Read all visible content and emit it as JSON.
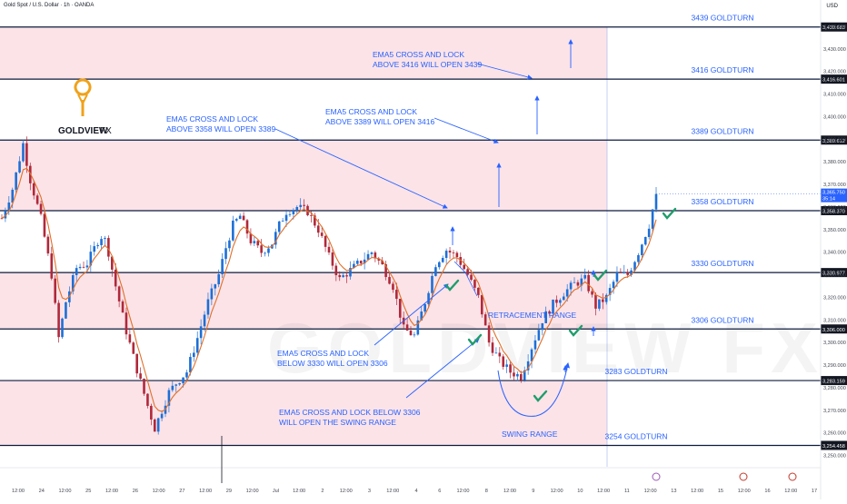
{
  "header": {
    "symbol_title": "Gold Spot / U.S. Dollar · 1h · OANDA",
    "currency": "USD"
  },
  "brand": {
    "name_part1": "GOLDVIEW",
    "name_part2": "FX",
    "watermark": "GOLDVIEW FX"
  },
  "colors": {
    "zone_fill": "#fbe3e8",
    "line": "#0d1b3e",
    "annotation": "#2962ff",
    "candle_up": "#1d6fd6",
    "candle_down": "#b0283a",
    "ema": "#e0702a",
    "check": "#1f9d6b",
    "price_label_bg": "#131722",
    "last_price_bg": "#2962ff"
  },
  "chart_data": {
    "type": "candlestick",
    "instrument": "XAUUSD",
    "timeframe": "1h",
    "ylim": [
      3245,
      3446
    ],
    "y_ticks": [
      3250,
      3260,
      3270,
      3280,
      3290,
      3300,
      3310,
      3320,
      3330,
      3340,
      3350,
      3360,
      3370,
      3380,
      3390,
      3400,
      3410,
      3420,
      3430,
      3440
    ],
    "x_tick_labels": [
      "12:00",
      "24",
      "12:00",
      "25",
      "12:00",
      "26",
      "12:00",
      "27",
      "12:00",
      "29",
      "12:00",
      "Jul",
      "12:00",
      "2",
      "12:00",
      "3",
      "12:00",
      "4",
      "6",
      "12:00",
      "8",
      "12:00",
      "9",
      "12:00",
      "10",
      "12:00",
      "11",
      "12:00",
      "13",
      "12:00",
      "15",
      "12:00",
      "16",
      "12:00",
      "17"
    ],
    "price_path": [
      [
        0,
        3355
      ],
      [
        3,
        3368
      ],
      [
        6,
        3388
      ],
      [
        8,
        3372
      ],
      [
        11,
        3355
      ],
      [
        14,
        3330
      ],
      [
        16,
        3302
      ],
      [
        18,
        3318
      ],
      [
        21,
        3333
      ],
      [
        24,
        3335
      ],
      [
        27,
        3345
      ],
      [
        28.5,
        3348
      ],
      [
        30,
        3340
      ],
      [
        32,
        3325
      ],
      [
        35,
        3305
      ],
      [
        38,
        3288
      ],
      [
        41,
        3272
      ],
      [
        43,
        3262
      ],
      [
        45,
        3270
      ],
      [
        47,
        3278
      ],
      [
        49,
        3282
      ],
      [
        52,
        3287
      ],
      [
        55,
        3302
      ],
      [
        58,
        3318
      ],
      [
        61,
        3330
      ],
      [
        63,
        3342
      ],
      [
        65,
        3352
      ],
      [
        67,
        3356
      ],
      [
        70,
        3345
      ],
      [
        73,
        3340
      ],
      [
        76,
        3344
      ],
      [
        78,
        3352
      ],
      [
        80,
        3358
      ],
      [
        83,
        3360
      ],
      [
        86,
        3358
      ],
      [
        89,
        3350
      ],
      [
        92,
        3338
      ],
      [
        95,
        3328
      ],
      [
        98,
        3332
      ],
      [
        101,
        3336
      ],
      [
        104,
        3340
      ],
      [
        107,
        3334
      ],
      [
        110,
        3325
      ],
      [
        113,
        3306
      ],
      [
        116,
        3303
      ],
      [
        119,
        3318
      ],
      [
        122,
        3335
      ],
      [
        125,
        3341
      ],
      [
        128,
        3338
      ],
      [
        131,
        3330
      ],
      [
        134,
        3320
      ],
      [
        137,
        3300
      ],
      [
        140,
        3292
      ],
      [
        143,
        3287
      ],
      [
        146,
        3285
      ],
      [
        149,
        3298
      ],
      [
        152,
        3310
      ],
      [
        155,
        3317
      ],
      [
        158,
        3322
      ],
      [
        161,
        3326
      ],
      [
        164,
        3328
      ],
      [
        167,
        3316
      ],
      [
        170,
        3320
      ],
      [
        173,
        3330
      ],
      [
        176,
        3330
      ],
      [
        179,
        3340
      ],
      [
        182,
        3352
      ],
      [
        184,
        3365.75
      ]
    ],
    "levels": [
      {
        "price": 3439.683,
        "tag": "3,439.683",
        "label": "3439 GOLDTURN"
      },
      {
        "price": 3416.601,
        "tag": "3,416.601",
        "label": "3416 GOLDTURN"
      },
      {
        "price": 3389.612,
        "tag": "3,389.612",
        "label": "3389 GOLDTURN"
      },
      {
        "price": 3358.37,
        "tag": "3,358.370",
        "label": "3358 GOLDTURN"
      },
      {
        "price": 3330.977,
        "tag": "3,330.977",
        "label": "3330 GOLDTURN"
      },
      {
        "price": 3306.0,
        "tag": "3,306.000",
        "label": "3306 GOLDTURN"
      },
      {
        "price": 3283.159,
        "tag": "3,283.159",
        "label": "3283 GOLDTURN"
      },
      {
        "price": 3254.458,
        "tag": "3,254.458",
        "label": "3254 GOLDTURN"
      }
    ],
    "last_price": {
      "price": 3365.75,
      "tag": "3,365.750",
      "countdown": "35:14"
    },
    "annotations": [
      {
        "lines": [
          "EMA5 CROSS AND LOCK",
          "ABOVE 3416 WILL OPEN 3439"
        ]
      },
      {
        "lines": [
          "EMA5 CROSS AND LOCK",
          "ABOVE 3389 WILL OPEN 3416"
        ]
      },
      {
        "lines": [
          "EMA5 CROSS AND LOCK",
          "ABOVE 3358 WILL OPEN 3389"
        ]
      },
      {
        "lines": [
          "EMA5 CROSS AND LOCK",
          "BELOW 3330 WILL OPEN 3306"
        ]
      },
      {
        "lines": [
          "EMA5 CROSS AND LOCK BELOW 3306",
          "WILL OPEN THE SWING RANGE"
        ]
      },
      {
        "lines": [
          "RETRACEMENT RANGE"
        ]
      },
      {
        "lines": [
          "SWING RANGE"
        ]
      }
    ]
  }
}
